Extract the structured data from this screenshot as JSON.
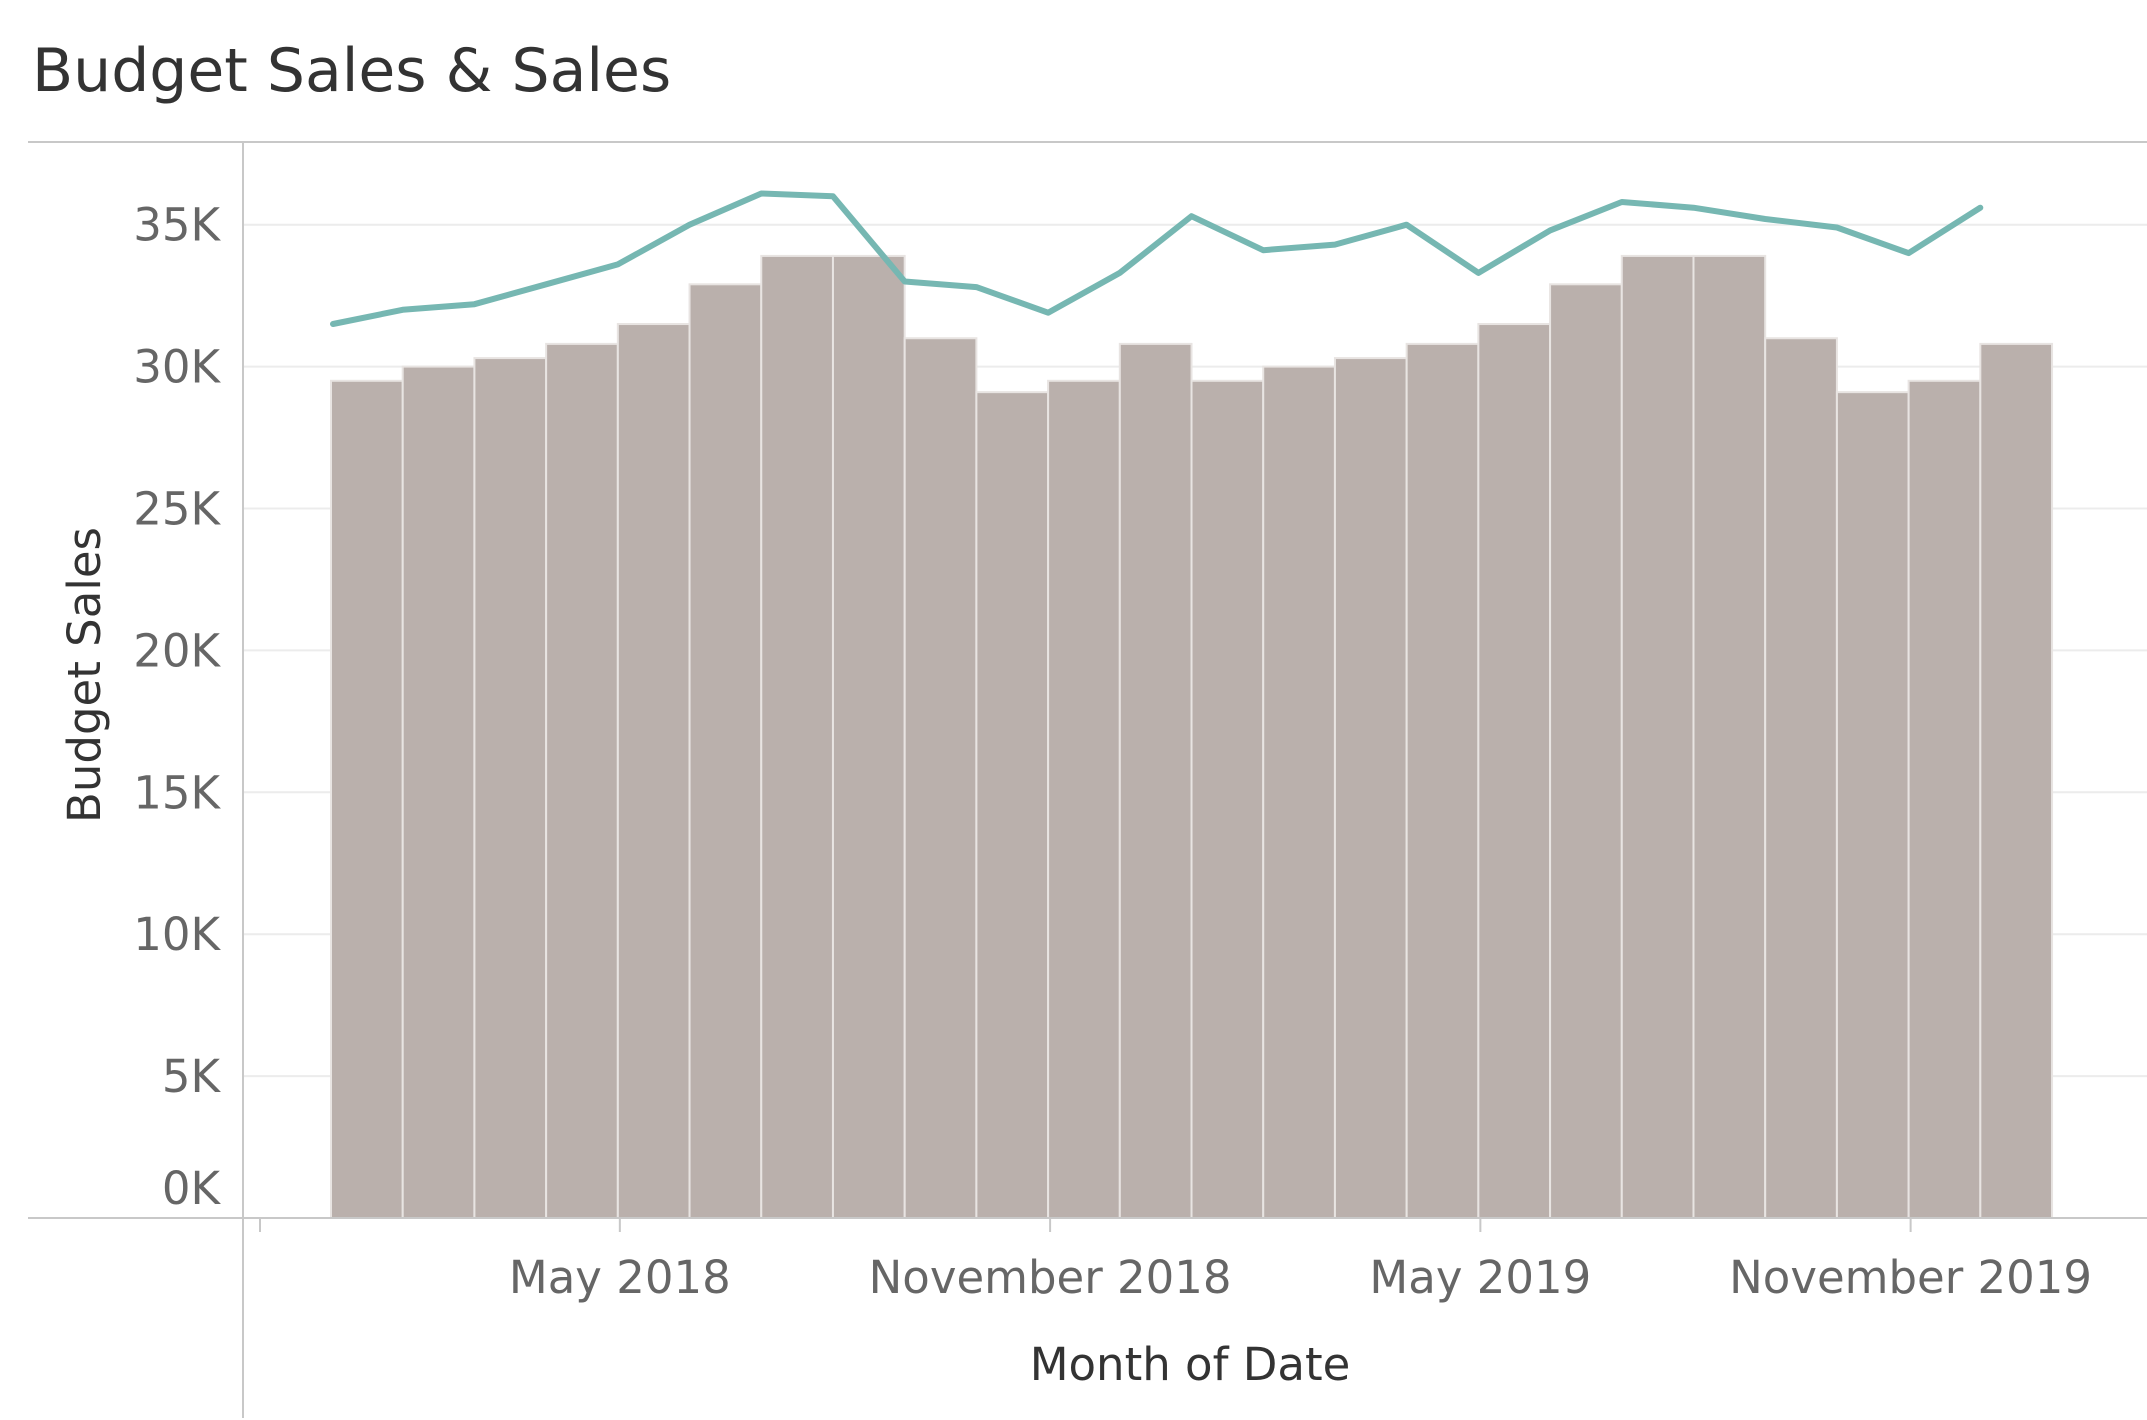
{
  "chart_data": {
    "type": "bar",
    "title": "Budget Sales & Sales",
    "xlabel": "Month of Date",
    "ylabel": "Budget Sales",
    "x_ticks": [
      "May 2018",
      "November 2018",
      "May 2019",
      "November 2019"
    ],
    "y_ticks": [
      "0K",
      "5K",
      "10K",
      "15K",
      "20K",
      "25K",
      "30K",
      "35K"
    ],
    "ylim": [
      0,
      37500
    ],
    "grid": true,
    "categories": [
      "2018-01",
      "2018-02",
      "2018-03",
      "2018-04",
      "2018-05",
      "2018-06",
      "2018-07",
      "2018-08",
      "2018-09",
      "2018-10",
      "2018-11",
      "2018-12",
      "2019-01",
      "2019-02",
      "2019-03",
      "2019-04",
      "2019-05",
      "2019-06",
      "2019-07",
      "2019-08",
      "2019-09",
      "2019-10",
      "2019-11",
      "2019-12"
    ],
    "series": [
      {
        "type": "bar",
        "values": [
          29500,
          30000,
          30300,
          30800,
          31500,
          32900,
          33900,
          33900,
          31000,
          29100,
          29500,
          30800,
          29500,
          30000,
          30300,
          30800,
          31500,
          32900,
          33900,
          33900,
          31000,
          29100,
          29500,
          30800
        ],
        "color": "#bab0ac"
      },
      {
        "type": "line",
        "values": [
          31500,
          32000,
          32200,
          32900,
          33600,
          35000,
          36100,
          36000,
          33000,
          32800,
          31900,
          33300,
          35300,
          34100,
          34300,
          35000,
          33300,
          34800,
          35800,
          35600,
          35200,
          34900,
          34000,
          35600
        ],
        "color": "#76b7b2"
      }
    ]
  }
}
